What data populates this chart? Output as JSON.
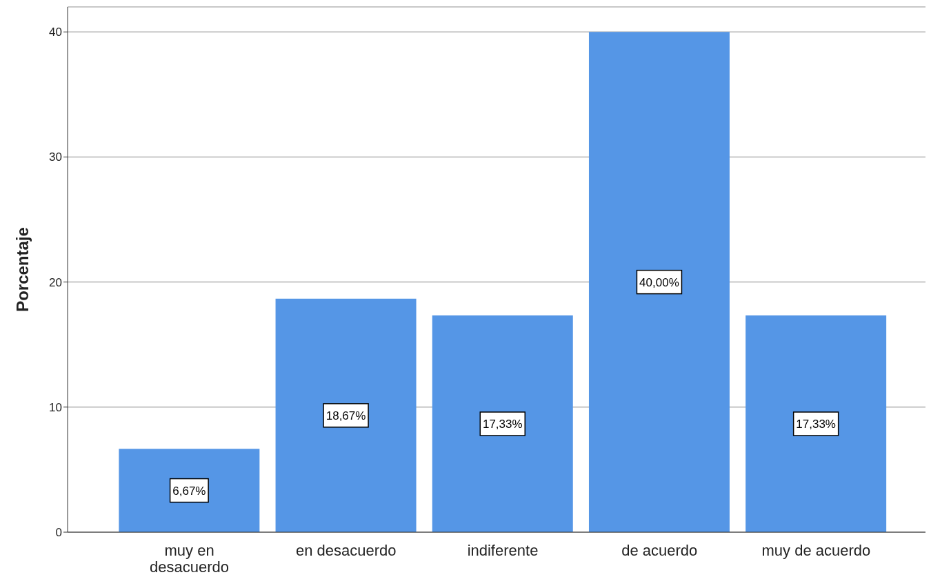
{
  "chart_data": {
    "type": "bar",
    "ylabel": "Porcentaje",
    "categories": [
      "muy en desacuerdo",
      "en desacuerdo",
      "indiferente",
      "de acuerdo",
      "muy de acuerdo"
    ],
    "values": [
      6.67,
      18.67,
      17.33,
      40.0,
      17.33
    ],
    "value_labels": [
      "6,67%",
      "18,67%",
      "17,33%",
      "40,00%",
      "17,33%"
    ],
    "color": "#5596e6",
    "ylim": [
      0,
      42
    ],
    "yticks": [
      0,
      10,
      20,
      30,
      40
    ],
    "grid": "y"
  }
}
